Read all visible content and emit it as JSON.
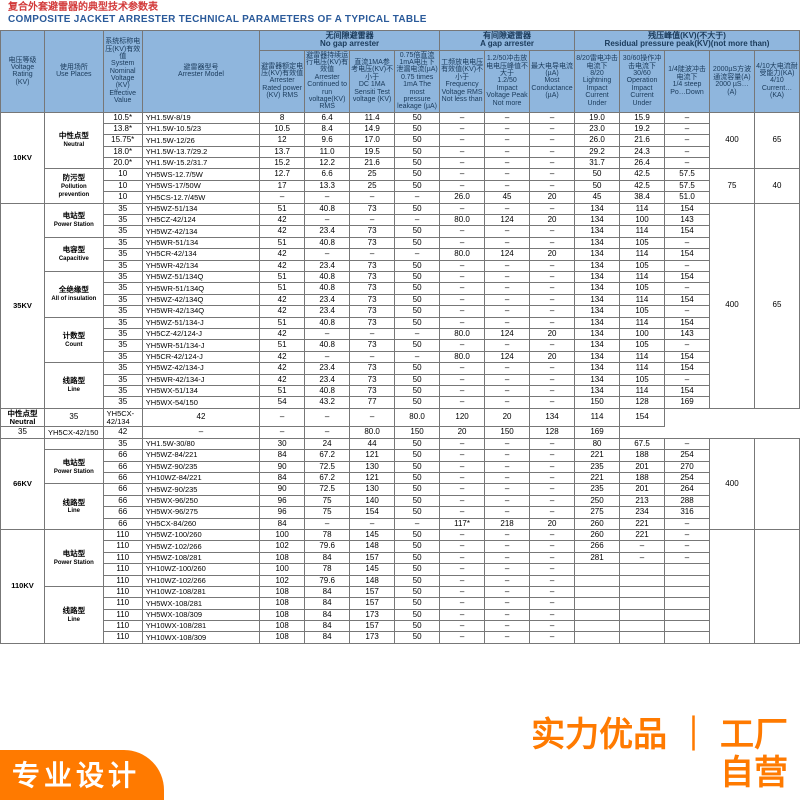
{
  "title": {
    "cn": "复合外套避雷器的典型技术参数表",
    "en": "COMPOSITE JACKET ARRESTER TECHNICAL PARAMETERS OF A TYPICAL TABLE"
  },
  "overlay_bl": {
    "l1": "专业设计",
    "l2": ""
  },
  "overlay_br": {
    "l1": "实力优品",
    "sep": "｜",
    "l2": "工厂",
    "l3": "自营"
  },
  "table": {
    "header_bg": "#8fb6dd",
    "header_fg": "#1a3a5a",
    "border_color": "#777777",
    "cols_main": [
      {
        "cn": "电压等级",
        "en": "Voltage Rating",
        "sub": "(KV)"
      },
      {
        "cn": "使用场所",
        "en": "Use Places"
      },
      {
        "cn": "系统标称电压(KV)有效值",
        "en": "System Nominal Voltage (KV) Effective Value"
      },
      {
        "cn": "避雷器型号",
        "en": "Arrester Model"
      }
    ],
    "group_nogap": {
      "cn": "无间隙避雷器",
      "en": "No gap arrester"
    },
    "group_gap": {
      "cn": "有间隙避雷器",
      "en": "A gap arrester"
    },
    "group_res": {
      "cn": "残压峰值(KV)(不大于)",
      "en": "Residual pressure peak(KV)(not more than)"
    },
    "sub_nogap": [
      {
        "cn": "避雷器额定电压(KV)有效值",
        "en": "Arrester Rated power (KV) RMS"
      },
      {
        "cn": "避雷器持续运行电压(KV)有效值",
        "en": "Arrester Continued to run voltage(KV) RMS"
      },
      {
        "cn": "直流1MA参考电压(KV)不小于",
        "en": "DC 1MA Sensiti Test voltage (KV)"
      },
      {
        "cn": "0.75倍直流1mA电压下泄漏电流(µA)",
        "en": "0.75 times 1mA The most pressure leakage (µA)"
      }
    ],
    "sub_gap": [
      {
        "cn": "工频放电电压有效值(KV)不小于",
        "en": "Frequency Voltage RMS Not less than"
      },
      {
        "cn": "1.2/50冲击放电电压峰值不大于",
        "en": "1.2/50 Impact Voltage Peak Not more"
      },
      {
        "cn": "最大电导电流(µA)",
        "en": "Most Conductance (µA)"
      }
    ],
    "sub_res": [
      {
        "cn": "8/20雷电冲击电流下",
        "en": "8/20 Lightning Impact Current Under"
      },
      {
        "cn": "30/60操作冲击电流下",
        "en": "30/60 Operation Impact Current Under"
      },
      {
        "cn": "1/4陡波冲击电流下",
        "en": "1/4 steep Po…Down"
      },
      {
        "cn": "2000µS方波通流容量(A)",
        "en": "2000 µS…(A)"
      },
      {
        "cn": "4/10大电流耐受能力(KA)",
        "en": "4/10 Current…(KA)"
      }
    ],
    "rows": [
      {
        "volt": "10KV",
        "voltspan": 8,
        "use": "中性点型",
        "use_en": "Neutral",
        "usespan": 5,
        "sys": "10.5*",
        "model": "YH1.5W-8/19",
        "d": [
          "8",
          "6.4",
          "11.4",
          "50",
          "–",
          "–",
          "–",
          "19.0",
          "15.9",
          "–",
          "400",
          "65"
        ],
        "r1": 5,
        "r2": 5
      },
      {
        "sys": "13.8*",
        "model": "YH1.5W-10.5/23",
        "d": [
          "10.5",
          "8.4",
          "14.9",
          "50",
          "–",
          "–",
          "–",
          "23.0",
          "19.2",
          "–"
        ]
      },
      {
        "sys": "15.75*",
        "model": "YH1.5W-12/26",
        "d": [
          "12",
          "9.6",
          "17.0",
          "50",
          "–",
          "–",
          "–",
          "26.0",
          "21.6",
          "–"
        ]
      },
      {
        "sys": "18.0*",
        "model": "YH1.5W-13.7/29.2",
        "d": [
          "13.7",
          "11.0",
          "19.5",
          "50",
          "–",
          "–",
          "–",
          "29.2",
          "24.3",
          "–"
        ]
      },
      {
        "sys": "20.0*",
        "model": "YH1.5W-15.2/31.7",
        "d": [
          "15.2",
          "12.2",
          "21.6",
          "50",
          "–",
          "–",
          "–",
          "31.7",
          "26.4",
          "–"
        ]
      },
      {
        "use": "防污型",
        "use_en": "Pollution prevention",
        "usespan": 3,
        "sys": "10",
        "model": "YH5WS-12.7/5W",
        "d": [
          "12.7",
          "6.6",
          "25",
          "50",
          "–",
          "–",
          "–",
          "50",
          "42.5",
          "57.5",
          "75",
          "40"
        ],
        "r1": 3,
        "r2": 3
      },
      {
        "sys": "10",
        "model": "YH5WS-17/50W",
        "d": [
          "17",
          "13.3",
          "25",
          "50",
          "–",
          "–",
          "–",
          "50",
          "42.5",
          "57.5"
        ]
      },
      {
        "sys": "10",
        "model": "YH5CS-12.7/45W",
        "d": [
          "–",
          "–",
          "–",
          "–",
          "26.0",
          "45",
          "20",
          "45",
          "38.4",
          "51.0"
        ]
      },
      {
        "volt": "35KV",
        "voltspan": 18,
        "use": "电站型",
        "use_en": "Power Station",
        "usespan": 3,
        "sys": "35",
        "model": "YH5WZ-51/134",
        "d": [
          "51",
          "40.8",
          "73",
          "50",
          "–",
          "–",
          "–",
          "134",
          "114",
          "154",
          "400",
          "65"
        ],
        "r1": 18,
        "r2": 18
      },
      {
        "sys": "35",
        "model": "YH5CZ-42/124",
        "d": [
          "42",
          "–",
          "–",
          "–",
          "80.0",
          "124",
          "20",
          "134",
          "100",
          "143"
        ]
      },
      {
        "sys": "35",
        "model": "YH5WZ-42/134",
        "d": [
          "42",
          "23.4",
          "73",
          "50",
          "–",
          "–",
          "–",
          "134",
          "114",
          "154"
        ]
      },
      {
        "use": "电容型",
        "use_en": "Capacitive",
        "usespan": 3,
        "sys": "35",
        "model": "YH5WR-51/134",
        "d": [
          "51",
          "40.8",
          "73",
          "50",
          "–",
          "–",
          "–",
          "134",
          "105",
          "–"
        ]
      },
      {
        "sys": "35",
        "model": "YH5CR-42/134",
        "d": [
          "42",
          "–",
          "–",
          "–",
          "80.0",
          "124",
          "20",
          "134",
          "114",
          "154"
        ]
      },
      {
        "sys": "35",
        "model": "YH5WR-42/134",
        "d": [
          "42",
          "23.4",
          "73",
          "50",
          "–",
          "–",
          "–",
          "134",
          "105",
          "–"
        ]
      },
      {
        "use": "全绝缘型",
        "use_en": "All of insulation",
        "usespan": 4,
        "sys": "35",
        "model": "YH5WZ-51/134Q",
        "d": [
          "51",
          "40.8",
          "73",
          "50",
          "–",
          "–",
          "–",
          "134",
          "114",
          "154"
        ]
      },
      {
        "sys": "35",
        "model": "YH5WR-51/134Q",
        "d": [
          "51",
          "40.8",
          "73",
          "50",
          "–",
          "–",
          "–",
          "134",
          "105",
          "–"
        ]
      },
      {
        "sys": "35",
        "model": "YH5WZ-42/134Q",
        "d": [
          "42",
          "23.4",
          "73",
          "50",
          "–",
          "–",
          "–",
          "134",
          "114",
          "154"
        ]
      },
      {
        "sys": "35",
        "model": "YH5WR-42/134Q",
        "d": [
          "42",
          "23.4",
          "73",
          "50",
          "–",
          "–",
          "–",
          "134",
          "105",
          "–"
        ]
      },
      {
        "use": "计数型",
        "use_en": "Count",
        "usespan": 4,
        "sys": "35",
        "model": "YH5WZ-51/134-J",
        "d": [
          "51",
          "40.8",
          "73",
          "50",
          "–",
          "–",
          "–",
          "134",
          "114",
          "154"
        ]
      },
      {
        "sys": "35",
        "model": "YH5CZ-42/124-J",
        "d": [
          "42",
          "–",
          "–",
          "–",
          "80.0",
          "124",
          "20",
          "134",
          "100",
          "143"
        ]
      },
      {
        "sys": "35",
        "model": "YH5WR-51/134-J",
        "d": [
          "51",
          "40.8",
          "73",
          "50",
          "–",
          "–",
          "–",
          "134",
          "105",
          "–"
        ]
      },
      {
        "sys": "35",
        "model": "YH5CR-42/124-J",
        "d": [
          "42",
          "–",
          "–",
          "–",
          "80.0",
          "124",
          "20",
          "134",
          "114",
          "154"
        ]
      },
      {
        "use": "线路型",
        "use_en": "Line",
        "usespan": 4,
        "sys": "35",
        "model": "YH5WZ-42/134-J",
        "d": [
          "42",
          "23.4",
          "73",
          "50",
          "–",
          "–",
          "–",
          "134",
          "114",
          "154"
        ]
      },
      {
        "sys": "35",
        "model": "YH5WR-42/134-J",
        "d": [
          "42",
          "23.4",
          "73",
          "50",
          "–",
          "–",
          "–",
          "134",
          "105",
          "–"
        ]
      },
      {
        "sys": "35",
        "model": "YH5WX-51/134",
        "d": [
          "51",
          "40.8",
          "73",
          "50",
          "–",
          "–",
          "–",
          "134",
          "114",
          "154"
        ]
      },
      {
        "sys": "35",
        "model": "YH5WX-54/150",
        "d": [
          "54",
          "43.2",
          "77",
          "50",
          "–",
          "–",
          "–",
          "150",
          "128",
          "169"
        ]
      },
      {
        "volt": "",
        "voltspan": 0,
        "use": "中性点型 Neutral",
        "usespan": 1,
        "sys": "35",
        "model": "YH5CX-42/134",
        "d": [
          "42",
          "–",
          "–",
          "–",
          "80.0",
          "120",
          "20",
          "134",
          "114",
          "154"
        ]
      },
      {
        "sys": "35",
        "model": "YH5CX-42/150",
        "d": [
          "42",
          "–",
          "–",
          "–",
          "80.0",
          "150",
          "20",
          "150",
          "128",
          "169"
        ]
      },
      {
        "volt": "66KV",
        "voltspan": 8,
        "use": "",
        "usespan": 1,
        "sys": "35",
        "model": "YH1.5W-30/80",
        "d": [
          "30",
          "24",
          "44",
          "50",
          "–",
          "–",
          "–",
          "80",
          "67.5",
          "–",
          "400",
          ""
        ],
        "r1": 8,
        "r2": 8
      },
      {
        "use": "电站型",
        "use_en": "Power Station",
        "usespan": 3,
        "sys": "66",
        "model": "YH5WZ-84/221",
        "d": [
          "84",
          "67.2",
          "121",
          "50",
          "–",
          "–",
          "–",
          "221",
          "188",
          "254"
        ]
      },
      {
        "sys": "66",
        "model": "YH5WZ-90/235",
        "d": [
          "90",
          "72.5",
          "130",
          "50",
          "–",
          "–",
          "–",
          "235",
          "201",
          "270"
        ]
      },
      {
        "sys": "66",
        "model": "YH10WZ-84/221",
        "d": [
          "84",
          "67.2",
          "121",
          "50",
          "–",
          "–",
          "–",
          "221",
          "188",
          "254"
        ]
      },
      {
        "use": "线路型",
        "use_en": "Line",
        "usespan": 4,
        "sys": "66",
        "model": "YH5WZ-90/235",
        "d": [
          "90",
          "72.5",
          "130",
          "50",
          "–",
          "–",
          "–",
          "235",
          "201",
          "264"
        ]
      },
      {
        "sys": "66",
        "model": "YH5WX-96/250",
        "d": [
          "96",
          "75",
          "140",
          "50",
          "–",
          "–",
          "–",
          "250",
          "213",
          "288"
        ]
      },
      {
        "sys": "66",
        "model": "YH5WX-96/275",
        "d": [
          "96",
          "75",
          "154",
          "50",
          "–",
          "–",
          "–",
          "275",
          "234",
          "316"
        ]
      },
      {
        "sys": "66",
        "model": "YH5CX-84/260",
        "d": [
          "84",
          "–",
          "–",
          "–",
          "117*",
          "218",
          "20",
          "260",
          "221",
          "–"
        ]
      },
      {
        "volt": "110KV",
        "voltspan": 10,
        "use": "电站型",
        "use_en": "Power Station",
        "usespan": 5,
        "sys": "110",
        "model": "YH5WZ-100/260",
        "d": [
          "100",
          "78",
          "145",
          "50",
          "–",
          "–",
          "–",
          "260",
          "221",
          "–",
          "",
          ""
        ],
        "r1": 10,
        "r2": 10
      },
      {
        "sys": "110",
        "model": "YH5WZ-102/266",
        "d": [
          "102",
          "79.6",
          "148",
          "50",
          "–",
          "–",
          "–",
          "266",
          "–",
          "–"
        ]
      },
      {
        "sys": "110",
        "model": "YH5WZ-108/281",
        "d": [
          "108",
          "84",
          "157",
          "50",
          "–",
          "–",
          "–",
          "281",
          "–",
          "–"
        ]
      },
      {
        "sys": "110",
        "model": "YH10WZ-100/260",
        "d": [
          "100",
          "78",
          "145",
          "50",
          "–",
          "–",
          "–",
          "",
          "",
          ""
        ]
      },
      {
        "sys": "110",
        "model": "YH10WZ-102/266",
        "d": [
          "102",
          "79.6",
          "148",
          "50",
          "–",
          "–",
          "–",
          "",
          "",
          ""
        ]
      },
      {
        "use": "线路型",
        "use_en": "Line",
        "usespan": 5,
        "sys": "110",
        "model": "YH10WZ-108/281",
        "d": [
          "108",
          "84",
          "157",
          "50",
          "–",
          "–",
          "–",
          "",
          "",
          ""
        ]
      },
      {
        "sys": "110",
        "model": "YH5WX-108/281",
        "d": [
          "108",
          "84",
          "157",
          "50",
          "–",
          "–",
          "–",
          "",
          "",
          ""
        ]
      },
      {
        "sys": "110",
        "model": "YH5WX-108/309",
        "d": [
          "108",
          "84",
          "173",
          "50",
          "–",
          "–",
          "–",
          "",
          "",
          ""
        ]
      },
      {
        "sys": "110",
        "model": "YH10WX-108/281",
        "d": [
          "108",
          "84",
          "157",
          "50",
          "–",
          "–",
          "–",
          "",
          "",
          ""
        ]
      },
      {
        "sys": "110",
        "model": "YH10WX-108/309",
        "d": [
          "108",
          "84",
          "173",
          "50",
          "–",
          "–",
          "–",
          "",
          "",
          ""
        ]
      }
    ]
  }
}
